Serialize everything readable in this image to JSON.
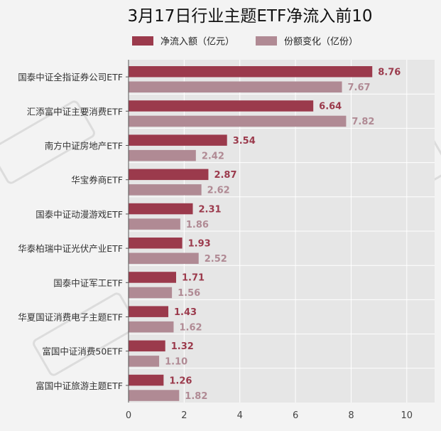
{
  "chart_data": {
    "type": "bar",
    "orientation": "horizontal",
    "title": "3月17日行业主题ETF净流入前10",
    "xlabel": "",
    "ylabel": "",
    "xlim": [
      0,
      11
    ],
    "xticks": [
      0,
      2,
      4,
      6,
      8,
      10
    ],
    "grid": true,
    "legend_position": "top",
    "categories": [
      "国泰中证全指证券公司ETF",
      "汇添富中证主要消费ETF",
      "南方中证房地产ETF",
      "华宝券商ETF",
      "国泰中证动漫游戏ETF",
      "华泰柏瑞中证光伏产业ETF",
      "国泰中证军工ETF",
      "华夏国证消费电子主题ETF",
      "富国中证消费50ETF",
      "富国中证旅游主题ETF"
    ],
    "series": [
      {
        "name": "净流入额（亿元）",
        "color": "#9b3a4c",
        "values": [
          8.76,
          6.64,
          3.54,
          2.87,
          2.31,
          1.93,
          1.71,
          1.43,
          1.32,
          1.26
        ]
      },
      {
        "name": "份额变化（亿份）",
        "color": "#b08a94",
        "values": [
          7.67,
          7.82,
          2.42,
          2.62,
          1.86,
          2.52,
          1.56,
          1.62,
          1.1,
          1.82
        ]
      }
    ]
  }
}
